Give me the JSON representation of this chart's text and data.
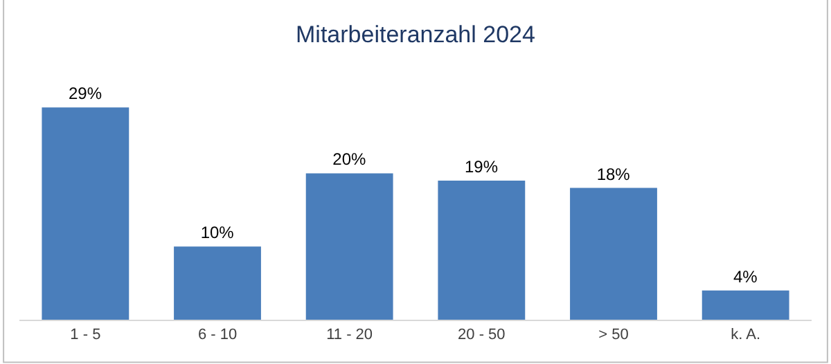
{
  "chart_data": {
    "type": "bar",
    "title": "Mitarbeiteranzahl 2024",
    "categories": [
      "1 - 5",
      "6 - 10",
      "11 - 20",
      "20 - 50",
      "> 50",
      "k. A."
    ],
    "values": [
      29,
      10,
      20,
      19,
      18,
      4
    ],
    "value_labels": [
      "29%",
      "10%",
      "20%",
      "19%",
      "18%",
      "4%"
    ],
    "color": "#4a7ebb"
  }
}
